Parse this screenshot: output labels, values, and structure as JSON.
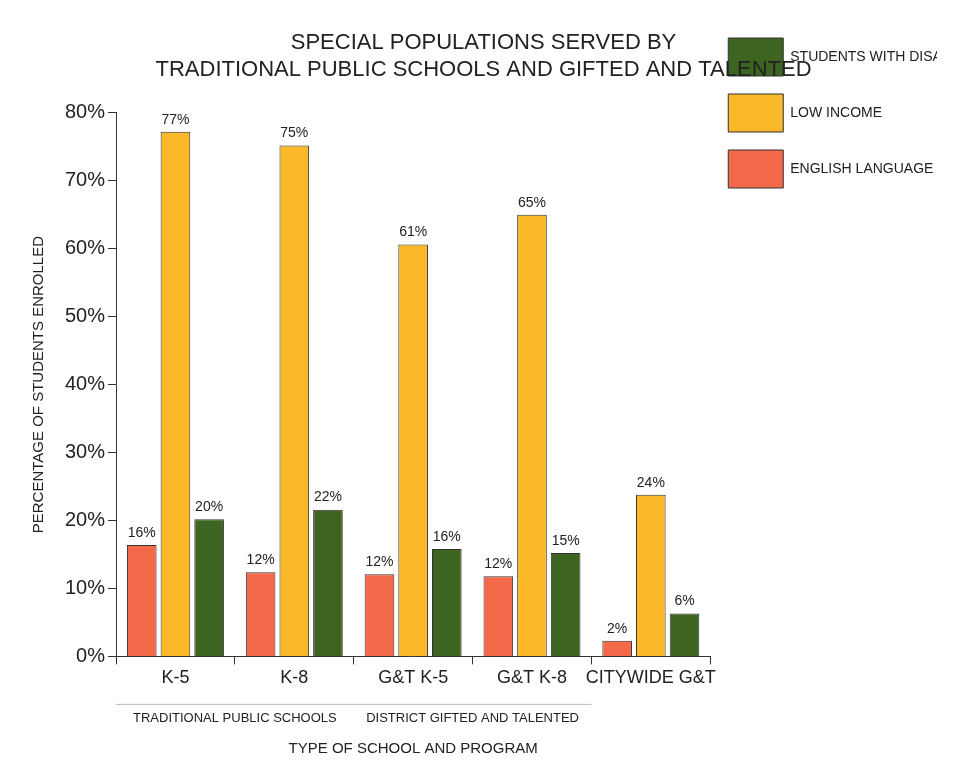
{
  "chart_data": {
    "type": "bar",
    "title": [
      "SPECIAL POPULATIONS SERVED BY",
      "TRADITIONAL PUBLIC SCHOOLS AND GIFTED AND TALENTED"
    ],
    "x_label": "TYPE OF SCHOOL AND PROGRAM",
    "y_label": "PERCENTAGE OF STUDENTS ENROLLED",
    "categories": [
      "K-5",
      "K-8",
      "G&T K-5",
      "G&T K-8",
      "CITYWIDE G&T"
    ],
    "series": [
      {
        "name": "ENGLISH LANGUAGE LEARNERS",
        "color": "#f4694a",
        "values": [
          16.4,
          12.4,
          12.1,
          11.8,
          2.3
        ],
        "value_labels": [
          "16%",
          "12%",
          "12%",
          "12%",
          "2%"
        ]
      },
      {
        "name": "LOW INCOME",
        "color": "#fbb829",
        "values": [
          77.2,
          75.2,
          60.6,
          65.0,
          23.8
        ],
        "value_labels": [
          "77%",
          "75%",
          "61%",
          "65%",
          "24%"
        ]
      },
      {
        "name": "STUDENTS WITH DISABILITIES",
        "color": "#3e6422",
        "values": [
          20.2,
          21.6,
          15.8,
          15.2,
          6.3
        ],
        "value_labels": [
          "20%",
          "22%",
          "16%",
          "15%",
          "6%"
        ]
      }
    ],
    "annotations": [
      {
        "text": "TRADITIONAL PUBLIC SCHOOLS",
        "categories": [
          "K-5",
          "K-8"
        ]
      },
      {
        "text": "DISTRICT GIFTED AND TALENTED",
        "categories": [
          "G&T K-5",
          "G&T K-8"
        ]
      }
    ],
    "ylim": [
      0,
      80
    ],
    "yticks": [
      {
        "value": 0,
        "label": "0%"
      },
      {
        "value": 10,
        "label": "10%"
      },
      {
        "value": 20,
        "label": "20%"
      },
      {
        "value": 30,
        "label": "30%"
      },
      {
        "value": 40,
        "label": "40%"
      },
      {
        "value": 50,
        "label": "50%"
      },
      {
        "value": 60,
        "label": "60%"
      },
      {
        "value": 70,
        "label": "70%"
      },
      {
        "value": 80,
        "label": "80%"
      }
    ],
    "grid": false,
    "legend": "top-right",
    "data_labels": true
  }
}
